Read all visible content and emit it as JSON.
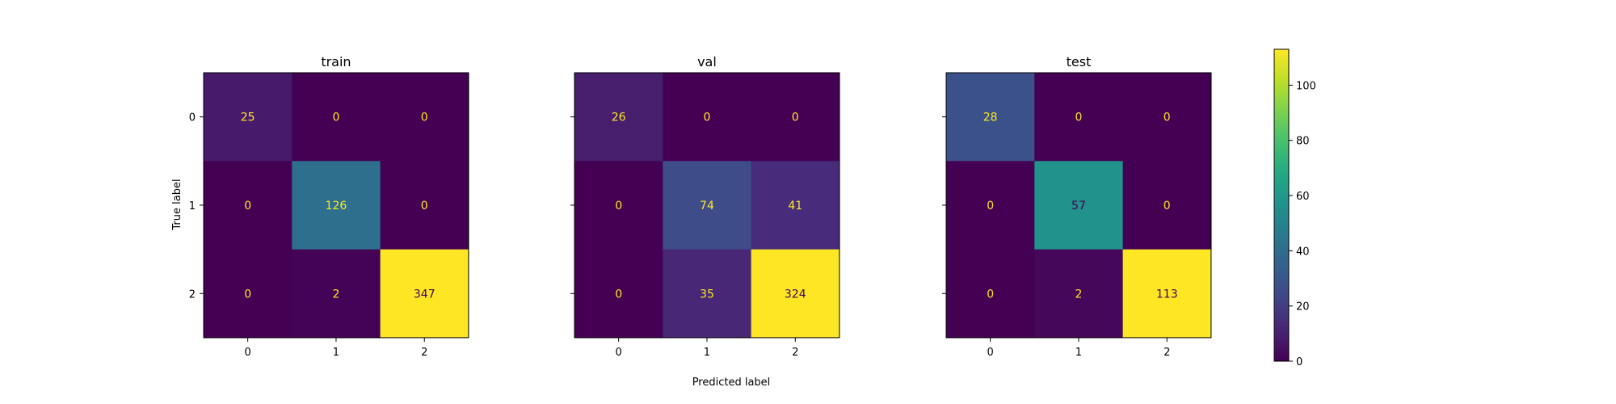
{
  "chart_data": {
    "type": "heatmap",
    "xlabel": "Predicted label",
    "ylabel": "True label",
    "panels": [
      {
        "title": "train",
        "x_categories": [
          "0",
          "1",
          "2"
        ],
        "y_categories": [
          "0",
          "1",
          "2"
        ],
        "matrix": [
          [
            25,
            0,
            0
          ],
          [
            0,
            126,
            0
          ],
          [
            0,
            2,
            347
          ]
        ],
        "show_y_tick_labels": true
      },
      {
        "title": "val",
        "x_categories": [
          "0",
          "1",
          "2"
        ],
        "y_categories": [
          "0",
          "1",
          "2"
        ],
        "matrix": [
          [
            26,
            0,
            0
          ],
          [
            0,
            74,
            41
          ],
          [
            0,
            35,
            324
          ]
        ],
        "show_y_tick_labels": false
      },
      {
        "title": "test",
        "x_categories": [
          "0",
          "1",
          "2"
        ],
        "y_categories": [
          "0",
          "1",
          "2"
        ],
        "matrix": [
          [
            28,
            0,
            0
          ],
          [
            0,
            57,
            0
          ],
          [
            0,
            2,
            113
          ]
        ],
        "show_y_tick_labels": false
      }
    ],
    "colorbar": {
      "min": 0,
      "max": 113,
      "ticks": [
        "0",
        "20",
        "40",
        "60",
        "80",
        "100"
      ],
      "colormap": "viridis"
    },
    "colors": {
      "low": "#440154",
      "high": "#fde725",
      "text_on_dark": "#fde725",
      "text_on_light": "#440154"
    }
  }
}
